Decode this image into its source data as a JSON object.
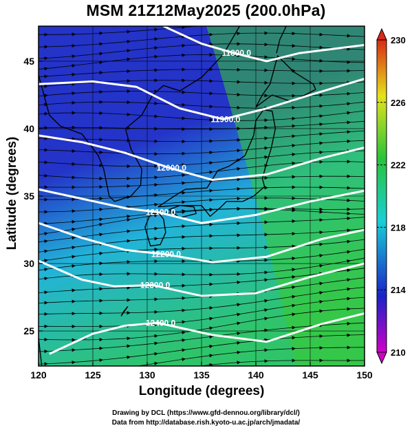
{
  "title": "MSM 21Z12May2025 (200.0hPa)",
  "x_axis": {
    "label": "Longitude (degrees)",
    "range": [
      120,
      150
    ],
    "ticks": [
      "120",
      "125",
      "130",
      "135",
      "140",
      "145",
      "150"
    ]
  },
  "y_axis": {
    "label": "Latitude  (degrees)",
    "range": [
      22.4,
      47.6
    ],
    "ticks": [
      "25",
      "30",
      "35",
      "40",
      "45"
    ]
  },
  "colorbar": {
    "range": [
      210,
      230
    ],
    "labels": [
      "210",
      "214",
      "218",
      "222",
      "226",
      "230"
    ],
    "colors": {
      "low": "#d000c8",
      "mid_low": "#1a22c8",
      "mid": "#19cfd6",
      "mid_high": "#27c43a",
      "high": "#e5e21a",
      "top": "#d92a15"
    }
  },
  "contours": {
    "color": "#ffffff",
    "labels": [
      "11800.0",
      "11900.0",
      "12000.0",
      "12100.0",
      "12200.0",
      "12300.0",
      "12400.0"
    ]
  },
  "map": {
    "background_colors": {
      "north": "#2433c8",
      "central": "#22b4d8",
      "south": "#2fc46a",
      "east": "#3acb2f",
      "coast": "#000000"
    }
  },
  "credits": {
    "line1": "Drawing by DCL (https://www.gfd-dennou.org/library/dcl/)",
    "line2": "Data from http://database.rish.kyoto-u.ac.jp/arch/jmadata/"
  }
}
